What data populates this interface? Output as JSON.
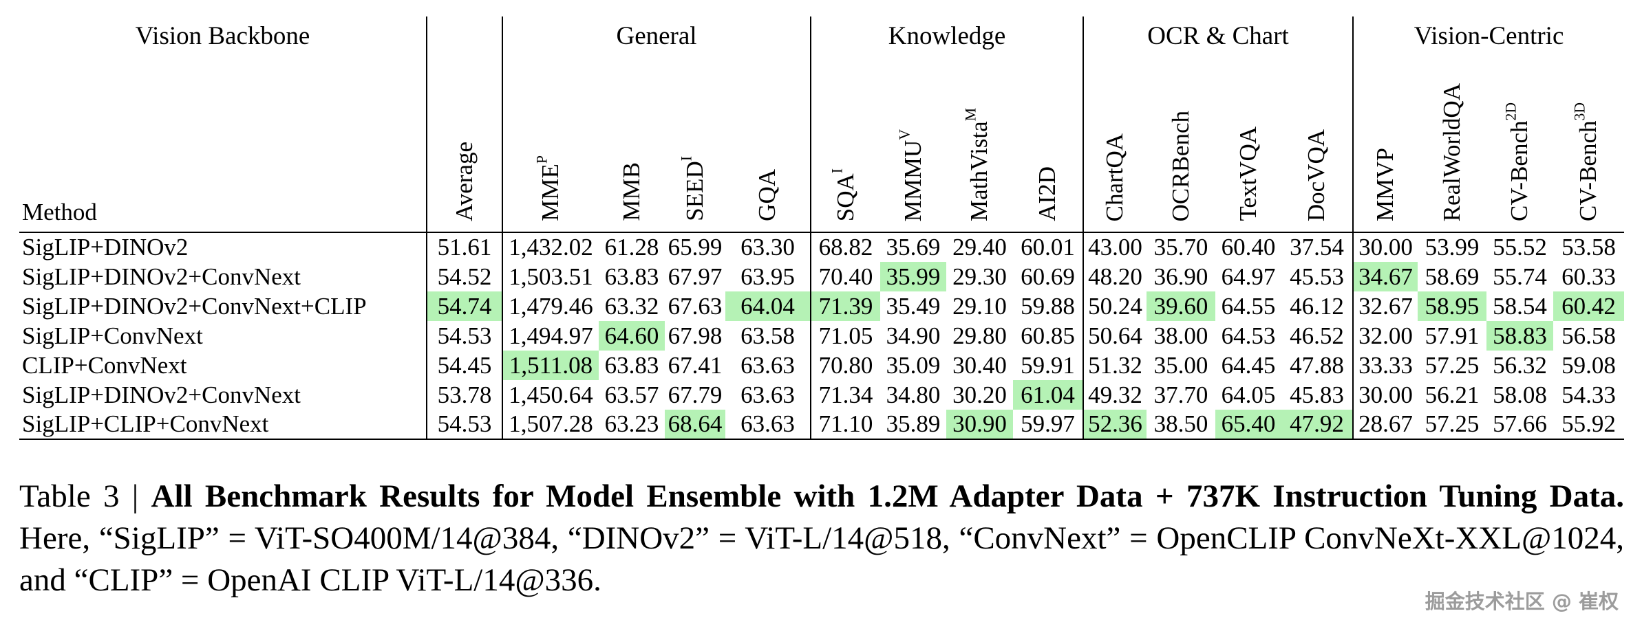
{
  "table": {
    "groups": {
      "backbone": "Vision Backbone",
      "general": "General",
      "knowledge": "Knowledge",
      "ocr_chart": "OCR & Chart",
      "vision_centric": "Vision-Centric"
    },
    "method_header": "Method",
    "columns": [
      {
        "label": "Average"
      },
      {
        "label": "MME",
        "sup": "P"
      },
      {
        "label": "MMB"
      },
      {
        "label": "SEED",
        "sup": "I"
      },
      {
        "label": "GQA"
      },
      {
        "label": "SQA",
        "sup": "I"
      },
      {
        "label": "MMMU",
        "sup": "V"
      },
      {
        "label": "MathVista",
        "sup": "M"
      },
      {
        "label": "AI2D"
      },
      {
        "label": "ChartQA"
      },
      {
        "label": "OCRBench"
      },
      {
        "label": "TextVQA"
      },
      {
        "label": "DocVQA"
      },
      {
        "label": "MMVP"
      },
      {
        "label": "RealWorldQA"
      },
      {
        "label": "CV-Bench",
        "sup": "2D"
      },
      {
        "label": "CV-Bench",
        "sup": "3D"
      }
    ],
    "rows": [
      {
        "method": "SigLIP+DINOv2",
        "values": [
          "51.61",
          "1,432.02",
          "61.28",
          "65.99",
          "63.30",
          "68.82",
          "35.69",
          "29.40",
          "60.01",
          "43.00",
          "35.70",
          "60.40",
          "37.54",
          "30.00",
          "53.99",
          "55.52",
          "53.58"
        ],
        "highlights": []
      },
      {
        "method": "SigLIP+DINOv2+ConvNext",
        "values": [
          "54.52",
          "1,503.51",
          "63.83",
          "67.97",
          "63.95",
          "70.40",
          "35.99",
          "29.30",
          "60.69",
          "48.20",
          "36.90",
          "64.97",
          "45.53",
          "34.67",
          "58.69",
          "55.74",
          "60.33"
        ],
        "highlights": [
          6,
          13
        ]
      },
      {
        "method": "SigLIP+DINOv2+ConvNext+CLIP",
        "values": [
          "54.74",
          "1,479.46",
          "63.32",
          "67.63",
          "64.04",
          "71.39",
          "35.49",
          "29.10",
          "59.88",
          "50.24",
          "39.60",
          "64.55",
          "46.12",
          "32.67",
          "58.95",
          "58.54",
          "60.42"
        ],
        "highlights": [
          0,
          4,
          5,
          10,
          14,
          16
        ]
      },
      {
        "method": "SigLIP+ConvNext",
        "values": [
          "54.53",
          "1,494.97",
          "64.60",
          "67.98",
          "63.58",
          "71.05",
          "34.90",
          "29.80",
          "60.85",
          "50.64",
          "38.00",
          "64.53",
          "46.52",
          "32.00",
          "57.91",
          "58.83",
          "56.58"
        ],
        "highlights": [
          2,
          15
        ]
      },
      {
        "method": "CLIP+ConvNext",
        "values": [
          "54.45",
          "1,511.08",
          "63.83",
          "67.41",
          "63.63",
          "70.80",
          "35.09",
          "30.40",
          "59.91",
          "51.32",
          "35.00",
          "64.45",
          "47.88",
          "33.33",
          "57.25",
          "56.32",
          "59.08"
        ],
        "highlights": [
          1
        ]
      },
      {
        "method": "SigLIP+DINOv2+ConvNext",
        "values": [
          "53.78",
          "1,450.64",
          "63.57",
          "67.79",
          "63.63",
          "71.34",
          "34.80",
          "30.20",
          "61.04",
          "49.32",
          "37.70",
          "64.05",
          "45.83",
          "30.00",
          "56.21",
          "58.08",
          "54.33"
        ],
        "highlights": [
          8
        ]
      },
      {
        "method": "SigLIP+CLIP+ConvNext",
        "values": [
          "54.53",
          "1,507.28",
          "63.23",
          "68.64",
          "63.63",
          "71.10",
          "35.89",
          "30.90",
          "59.97",
          "52.36",
          "38.50",
          "65.40",
          "47.92",
          "28.67",
          "57.25",
          "57.66",
          "55.92"
        ],
        "highlights": [
          3,
          7,
          9,
          11,
          12
        ]
      }
    ],
    "highlight_color": "#b5f2b5"
  },
  "caption": {
    "prefix": "Table 3 | ",
    "bold": "All Benchmark Results for Model Ensemble with 1.2M Adapter Data + 737K Instruction Tuning Data.",
    "rest": "Here, “SigLIP” = ViT-SO400M/14@384, “DINOv2” = ViT-L/14@518, “ConvNext” = OpenCLIP ConvNeXt-XXL@1024, and “CLIP” = OpenAI CLIP ViT-L/14@336."
  },
  "watermark": "掘金技术社区 @ 崔权"
}
